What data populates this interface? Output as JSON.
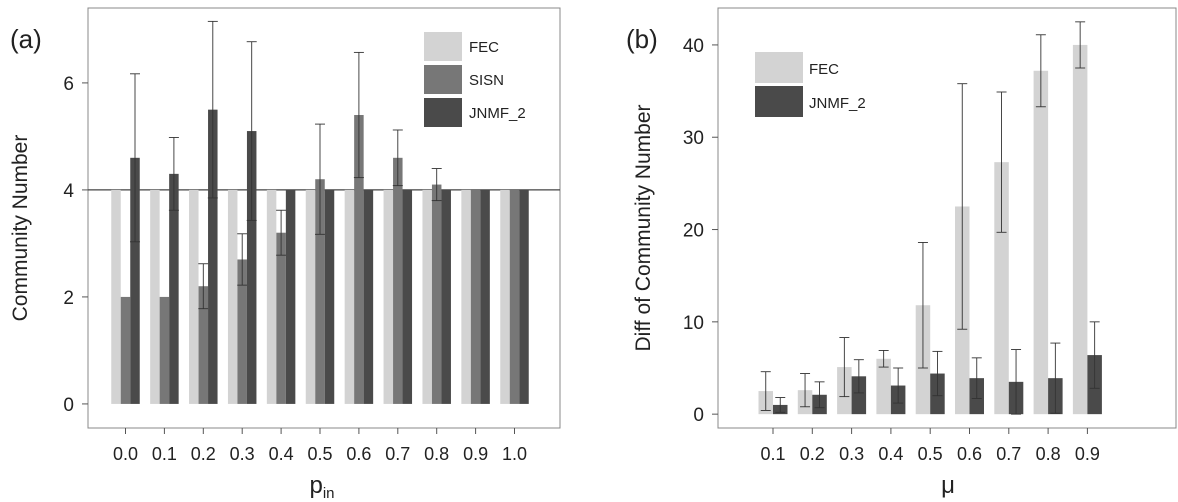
{
  "chart_data": [
    {
      "type": "bar",
      "panel_label": "(a)",
      "xlabel": "p",
      "xlabel_sub": "in",
      "ylabel": "Community Number",
      "ylim": [
        -0.45,
        7.4
      ],
      "yticks": [
        0,
        2,
        4,
        6
      ],
      "reference_line": 4,
      "bars_from_reference": true,
      "grid": false,
      "legend_position": "top-right",
      "categories": [
        "0.0",
        "0.1",
        "0.2",
        "0.3",
        "0.4",
        "0.5",
        "0.6",
        "0.7",
        "0.8",
        "0.9",
        "1.0"
      ],
      "series": [
        {
          "name": "FEC",
          "color": "#d3d3d3",
          "values": [
            4,
            4,
            4,
            4,
            4,
            4,
            4,
            4,
            4,
            4,
            4
          ],
          "errors": [
            0,
            0,
            0,
            0,
            0,
            0,
            0,
            0,
            0,
            0,
            0
          ]
        },
        {
          "name": "SISN",
          "color": "#777777",
          "values": [
            2.0,
            2.0,
            2.2,
            2.7,
            3.2,
            4.2,
            5.4,
            4.6,
            4.1,
            4.0,
            4.0
          ],
          "errors": [
            0,
            0,
            0.42,
            0.48,
            0.42,
            1.03,
            1.17,
            0.52,
            0.3,
            0,
            0
          ]
        },
        {
          "name": "JNMF_2",
          "color": "#4a4a4a",
          "values": [
            4.6,
            4.3,
            5.5,
            5.1,
            4.0,
            4.0,
            4.0,
            4.0,
            4.0,
            4.0,
            4.0
          ],
          "errors": [
            1.57,
            0.68,
            1.65,
            1.67,
            0,
            0,
            0,
            0,
            0,
            0,
            0
          ]
        }
      ]
    },
    {
      "type": "bar",
      "panel_label": "(b)",
      "xlabel": "μ",
      "ylabel": "Diff of Community Number",
      "ylim": [
        -1.5,
        44
      ],
      "yticks": [
        0,
        10,
        20,
        30,
        40
      ],
      "grid": false,
      "legend_position": "top-left",
      "categories": [
        "0.1",
        "0.2",
        "0.3",
        "0.4",
        "0.5",
        "0.6",
        "0.7",
        "0.8",
        "0.9"
      ],
      "series": [
        {
          "name": "FEC",
          "color": "#d3d3d3",
          "values": [
            2.5,
            2.6,
            5.1,
            6.0,
            11.8,
            22.5,
            27.3,
            37.2,
            40.0
          ],
          "errors": [
            2.1,
            1.8,
            3.2,
            0.9,
            6.8,
            13.3,
            7.6,
            3.9,
            2.5
          ]
        },
        {
          "name": "JNMF_2",
          "color": "#4a4a4a",
          "values": [
            1.0,
            2.1,
            4.1,
            3.1,
            4.4,
            3.9,
            3.5,
            3.9,
            6.4
          ],
          "errors": [
            0.8,
            1.4,
            1.8,
            1.9,
            2.4,
            2.2,
            3.5,
            3.8,
            3.6
          ]
        }
      ]
    }
  ]
}
